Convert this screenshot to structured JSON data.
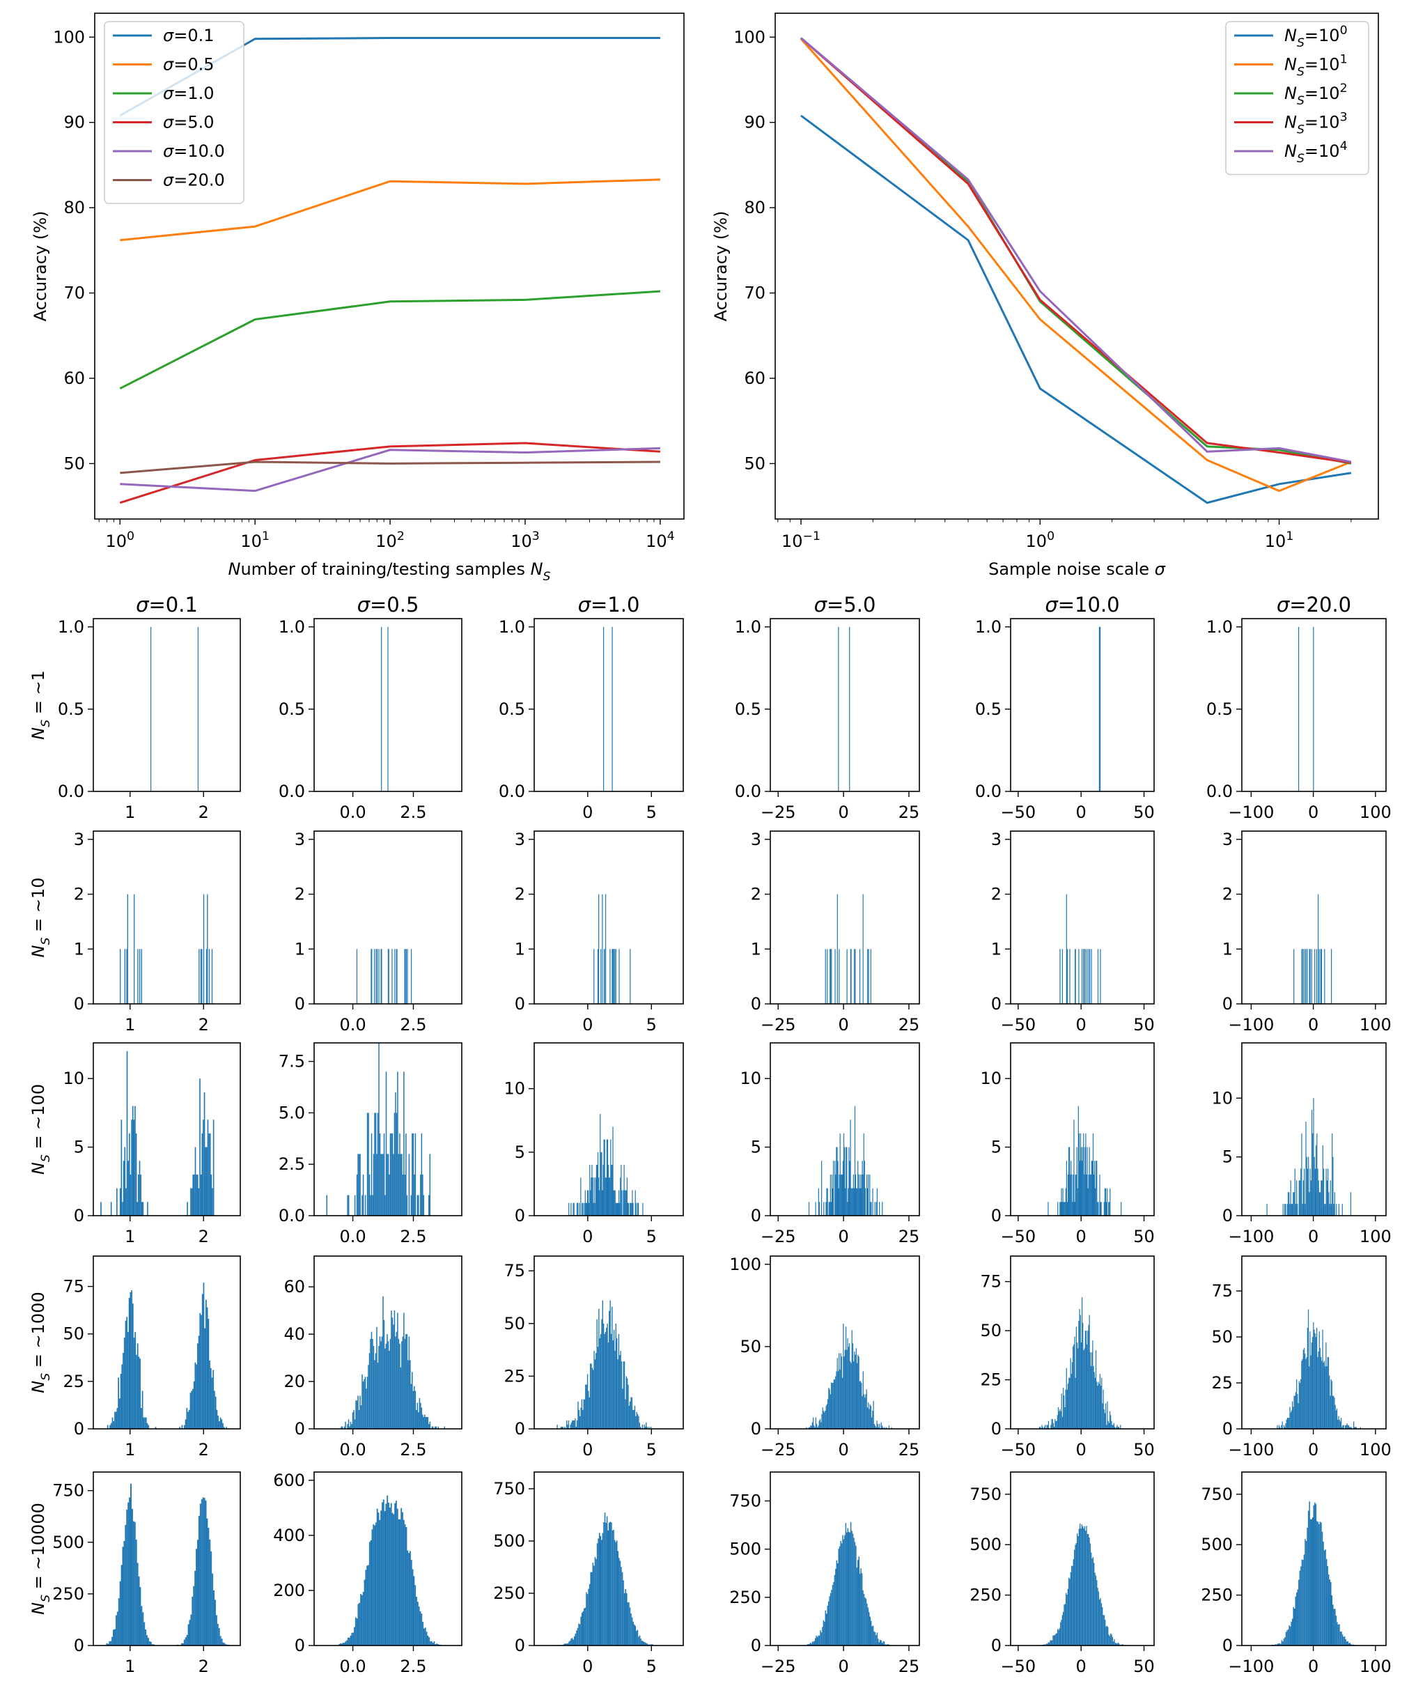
{
  "colors": {
    "c0": "#1f77b4",
    "c1": "#ff7f0e",
    "c2": "#2ca02c",
    "c3": "#d62728",
    "c4": "#9467bd",
    "c5": "#8c564b"
  },
  "chart_data": [
    {
      "type": "line",
      "id": "accuracy-vs-samples",
      "xscale": "log",
      "xlabel": "Number of training/testing samples N_S",
      "ylabel": "Accuracy (%)",
      "xlim": [
        0.65,
        15000
      ],
      "ylim": [
        43.5,
        102.8
      ],
      "yticks": [
        50,
        60,
        70,
        80,
        90,
        100
      ],
      "x": [
        1,
        10,
        100,
        1000,
        10000
      ],
      "x_tick_labels": [
        "10^0",
        "10^1",
        "10^2",
        "10^3",
        "10^4"
      ],
      "legend_loc": "upper left",
      "series": [
        {
          "name": "σ=0.1",
          "values": [
            90.8,
            99.8,
            99.9,
            99.9,
            99.9
          ]
        },
        {
          "name": "σ=0.5",
          "values": [
            76.2,
            77.8,
            83.1,
            82.8,
            83.3
          ]
        },
        {
          "name": "σ=1.0",
          "values": [
            58.8,
            66.9,
            69.0,
            69.2,
            70.2
          ]
        },
        {
          "name": "σ=5.0",
          "values": [
            45.4,
            50.4,
            52.0,
            52.4,
            51.4
          ]
        },
        {
          "name": "σ=10.0",
          "values": [
            47.6,
            46.8,
            51.6,
            51.3,
            51.8
          ]
        },
        {
          "name": "σ=20.0",
          "values": [
            48.9,
            50.2,
            50.0,
            50.1,
            50.2
          ]
        }
      ]
    },
    {
      "type": "line",
      "id": "accuracy-vs-noise",
      "xscale": "log",
      "xlabel": "Sample noise scale σ",
      "ylabel": "Accuracy (%)",
      "xlim": [
        0.078,
        26
      ],
      "ylim": [
        43.5,
        102.8
      ],
      "yticks": [
        50,
        60,
        70,
        80,
        90,
        100
      ],
      "x": [
        0.1,
        0.5,
        1.0,
        5.0,
        10.0,
        20.0
      ],
      "x_ticks": [
        0.1,
        1,
        10
      ],
      "x_tick_labels": [
        "10^−1",
        "10^0",
        "10^1"
      ],
      "legend_loc": "upper right",
      "series": [
        {
          "name": "N_S=10^0",
          "values": [
            90.8,
            76.2,
            58.8,
            45.4,
            47.6,
            48.9
          ]
        },
        {
          "name": "N_S=10^1",
          "values": [
            99.8,
            77.8,
            66.9,
            50.4,
            46.8,
            50.2
          ]
        },
        {
          "name": "N_S=10^2",
          "values": [
            99.9,
            83.1,
            69.0,
            52.0,
            51.6,
            50.0
          ]
        },
        {
          "name": "N_S=10^3",
          "values": [
            99.9,
            82.8,
            69.2,
            52.4,
            51.3,
            50.1
          ]
        },
        {
          "name": "N_S=10^4",
          "values": [
            99.9,
            83.3,
            70.2,
            51.4,
            51.8,
            50.2
          ]
        }
      ]
    },
    {
      "type": "histogram-grid",
      "id": "sample-histograms",
      "column_titles": [
        "σ=0.1",
        "σ=0.5",
        "σ=1.0",
        "σ=5.0",
        "σ=10.0",
        "σ=20.0"
      ],
      "sigmas": [
        0.1,
        0.5,
        1.0,
        5.0,
        10.0,
        20.0
      ],
      "row_labels": [
        "N_S = ~1",
        "N_S = ~10",
        "N_S = ~100",
        "N_S = ~1000",
        "N_S = ~10000"
      ],
      "class_means": [
        1,
        2
      ],
      "columns_x": [
        {
          "xlim": [
            0.5,
            2.5
          ],
          "xticks": [
            1,
            2
          ],
          "xtick_labels": [
            "1",
            "2"
          ]
        },
        {
          "xlim": [
            -1.6,
            4.5
          ],
          "xticks": [
            0,
            2.5
          ],
          "xtick_labels": [
            "0.0",
            "2.5"
          ]
        },
        {
          "xlim": [
            -4.2,
            7.5
          ],
          "xticks": [
            0,
            5
          ],
          "xtick_labels": [
            "0",
            "5"
          ]
        },
        {
          "xlim": [
            -28,
            29
          ],
          "xticks": [
            -25,
            0,
            25
          ],
          "xtick_labels": [
            "−25",
            "0",
            "25"
          ]
        },
        {
          "xlim": [
            -56,
            58
          ],
          "xticks": [
            -50,
            0,
            50
          ],
          "xtick_labels": [
            "−50",
            "0",
            "50"
          ]
        },
        {
          "xlim": [
            -115,
            117
          ],
          "xticks": [
            -100,
            0,
            100
          ],
          "xtick_labels": [
            "−100",
            "0",
            "100"
          ]
        }
      ],
      "rows": [
        {
          "n": 2,
          "ylim_by_column": [
            [
              0,
              1.05
            ],
            [
              0,
              1.05
            ],
            [
              0,
              1.05
            ],
            [
              0,
              1.05
            ],
            [
              0,
              1.05
            ],
            [
              0,
              1.05
            ]
          ],
          "yticks": [
            0,
            0.5,
            1.0
          ],
          "ytick_labels": [
            "0.0",
            "0.5",
            "1.0"
          ]
        },
        {
          "n": 20,
          "ylim_by_column": [
            [
              0,
              3.15
            ],
            [
              0,
              3.15
            ],
            [
              0,
              3.15
            ],
            [
              0,
              3.15
            ],
            [
              0,
              3.15
            ],
            [
              0,
              3.15
            ]
          ],
          "yticks": [
            0,
            1,
            2,
            3
          ],
          "ytick_labels": [
            "0",
            "1",
            "2",
            "3"
          ]
        },
        {
          "n": 200,
          "ylim_by_column": [
            [
              0,
              12.6
            ],
            [
              0,
              8.4
            ],
            [
              0,
              13.6
            ],
            [
              0,
              12.6
            ],
            [
              0,
              12.6
            ],
            [
              0,
              14.7
            ]
          ],
          "yticks_by_column": [
            [
              0,
              5,
              10
            ],
            [
              0,
              2.5,
              5,
              7.5
            ],
            [
              0,
              5,
              10
            ],
            [
              0,
              5,
              10
            ],
            [
              0,
              5,
              10
            ],
            [
              0,
              5,
              10
            ]
          ],
          "ytick_labels_by_column": [
            [
              "0",
              "5",
              "10"
            ],
            [
              "0.0",
              "2.5",
              "5.0",
              "7.5"
            ],
            [
              "0",
              "5",
              "10"
            ],
            [
              "0",
              "5",
              "10"
            ],
            [
              "0",
              "5",
              "10"
            ],
            [
              "0",
              "5",
              "10"
            ]
          ]
        },
        {
          "n": 2000,
          "ylim_by_column": [
            [
              0,
              91
            ],
            [
              0,
              73
            ],
            [
              0,
              82
            ],
            [
              0,
              105
            ],
            [
              0,
              88
            ],
            [
              0,
              94
            ]
          ],
          "yticks_by_column": [
            [
              0,
              25,
              50,
              75
            ],
            [
              0,
              20,
              40,
              60
            ],
            [
              0,
              25,
              50,
              75
            ],
            [
              0,
              50,
              100
            ],
            [
              0,
              25,
              50,
              75
            ],
            [
              0,
              25,
              50,
              75
            ]
          ],
          "ytick_labels_by_column": [
            [
              "0",
              "25",
              "50",
              "75"
            ],
            [
              "0",
              "20",
              "40",
              "60"
            ],
            [
              "0",
              "25",
              "50",
              "75"
            ],
            [
              "0",
              "50",
              "100"
            ],
            [
              "0",
              "25",
              "50",
              "75"
            ],
            [
              "0",
              "25",
              "50",
              "75"
            ]
          ]
        },
        {
          "n": 20000,
          "ylim_by_column": [
            [
              0,
              840
            ],
            [
              0,
              630
            ],
            [
              0,
              830
            ],
            [
              0,
              900
            ],
            [
              0,
              860
            ],
            [
              0,
              860
            ]
          ],
          "yticks_by_column": [
            [
              0,
              250,
              500,
              750
            ],
            [
              0,
              200,
              400,
              600
            ],
            [
              0,
              250,
              500,
              750
            ],
            [
              0,
              250,
              500,
              750
            ],
            [
              0,
              250,
              500,
              750
            ],
            [
              0,
              250,
              500,
              750
            ]
          ],
          "ytick_labels_by_column": [
            [
              "0",
              "250",
              "500",
              "750"
            ],
            [
              "0",
              "200",
              "400",
              "600"
            ],
            [
              "0",
              "250",
              "500",
              "750"
            ],
            [
              "0",
              "250",
              "500",
              "750"
            ],
            [
              "0",
              "250",
              "500",
              "750"
            ],
            [
              "0",
              "250",
              "500",
              "750"
            ]
          ]
        }
      ]
    }
  ]
}
